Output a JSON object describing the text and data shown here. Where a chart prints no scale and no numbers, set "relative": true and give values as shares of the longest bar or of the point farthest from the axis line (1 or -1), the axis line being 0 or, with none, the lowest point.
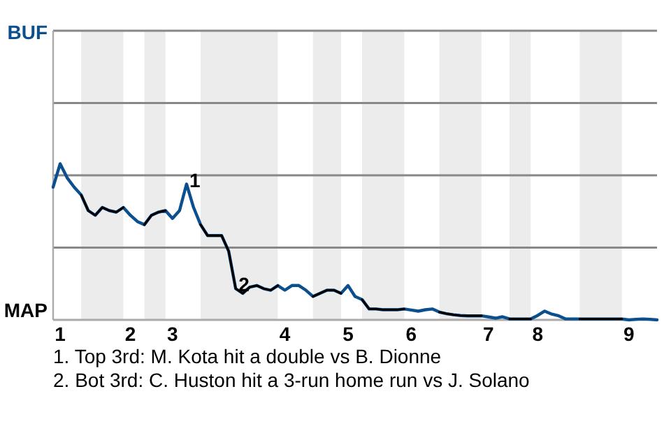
{
  "chart_data": {
    "type": "line",
    "relative": true,
    "categories": [
      null,
      "1",
      null,
      null,
      null,
      null,
      null,
      null,
      null,
      null,
      null,
      "2",
      null,
      null,
      null,
      null,
      null,
      "3",
      null,
      null,
      null,
      null,
      null,
      null,
      null,
      null,
      null,
      null,
      null,
      null,
      null,
      null,
      null,
      "4",
      null,
      null,
      null,
      null,
      null,
      null,
      null,
      null,
      "5",
      null,
      null,
      null,
      null,
      null,
      null,
      null,
      null,
      "6",
      null,
      null,
      null,
      null,
      null,
      null,
      null,
      null,
      null,
      null,
      "7",
      null,
      null,
      null,
      null,
      null,
      null,
      "8",
      null,
      null,
      null,
      null,
      null,
      null,
      null,
      null,
      null,
      null,
      null,
      null,
      "9",
      null,
      null,
      null,
      null
    ],
    "series": [
      {
        "color": "#0b4f8e",
        "values": [
          0.85,
          1,
          0.91,
          0.85,
          0.8,
          0.7,
          0.67,
          0.72,
          0.7,
          0.69,
          0.72,
          0.67,
          0.63,
          0.61,
          0.67,
          0.69,
          0.7,
          0.65,
          0.7,
          0.87,
          0.72,
          0.61,
          0.54,
          0.54,
          0.54,
          0.44,
          0.2,
          0.17,
          0.21,
          0.22,
          0.2,
          0.19,
          0.22,
          0.19,
          0.22,
          0.22,
          0.19,
          0.15,
          0.17,
          0.19,
          0.19,
          0.17,
          0.22,
          0.15,
          0.13,
          0.07,
          0.07,
          0.065,
          0.065,
          0.065,
          0.07,
          0.063,
          0.056,
          0.065,
          0.07,
          0.05,
          0.04,
          0.033,
          0.028,
          0.026,
          0.026,
          0.026,
          0.019,
          0.011,
          0.02,
          0.006,
          0.006,
          0.006,
          0.006,
          0.028,
          0.056,
          0.037,
          0.026,
          0.006,
          0.006,
          0.006,
          0.006,
          0.006,
          0.006,
          0.006,
          0.006,
          0.006,
          0,
          0.004,
          0.006,
          0.004,
          0
        ]
      },
      {
        "color": "#000000",
        "values": [
          null,
          null,
          null,
          null,
          0.8,
          0.7,
          0.67,
          0.72,
          0.7,
          0.69,
          0.72,
          null,
          null,
          0.61,
          0.67,
          0.69,
          0.7,
          null,
          null,
          null,
          null,
          0.61,
          0.54,
          0.54,
          0.54,
          0.44,
          0.2,
          0.17,
          0.21,
          0.22,
          0.2,
          0.19,
          0.22,
          null,
          null,
          null,
          null,
          0.15,
          0.17,
          0.19,
          0.19,
          0.17,
          null,
          null,
          0.13,
          0.07,
          0.07,
          0.065,
          0.065,
          0.065,
          0.07,
          null,
          null,
          null,
          null,
          0.05,
          0.04,
          0.033,
          0.028,
          0.026,
          0.026,
          0.026,
          null,
          null,
          null,
          0.006,
          0.006,
          0.006,
          0.006,
          null,
          null,
          null,
          null,
          null,
          null,
          0.006,
          0.006,
          0.006,
          0.006,
          0.006,
          0.006,
          0.006,
          null,
          null,
          null,
          null,
          null
        ]
      }
    ],
    "ref_lines": [
      {
        "axis": "y",
        "value": 0.463,
        "color": "#888888"
      },
      {
        "axis": "y",
        "value": 0.926,
        "color": "#888888"
      },
      {
        "axis": "y",
        "value": 1.389,
        "color": "#888888"
      },
      {
        "axis": "y",
        "value": 1.852,
        "color": "#888888"
      }
    ],
    "marker": "none",
    "line_style": "solid",
    "annotations": [
      "BUF",
      "MAP",
      {
        "text": "1",
        "y": 0.87
      },
      {
        "text": "2",
        "y": 0.2
      },
      "1. Top 3rd: M. Kota hit a double vs B. Dionne",
      "2. Bot 3rd: C. Huston hit a 3-run home run vs J. Solano"
    ]
  }
}
